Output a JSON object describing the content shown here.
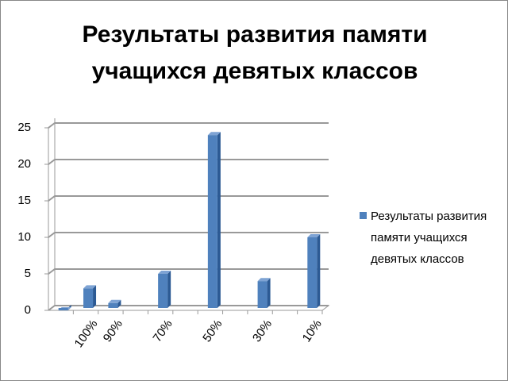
{
  "chart_data": {
    "type": "bar",
    "title": "Результаты развития памяти учащихся девятых классов",
    "categories": [
      null,
      "100%",
      "90%",
      null,
      "70%",
      null,
      "50%",
      null,
      "30%",
      null,
      "10%"
    ],
    "series": [
      {
        "name": "Результаты развития памяти учащихся девятых классов",
        "color": "#4f81bd",
        "values": [
          0,
          3,
          1,
          null,
          5,
          null,
          24,
          null,
          4,
          null,
          10
        ]
      }
    ],
    "ylim": [
      0,
      25
    ],
    "yticks": [
      0,
      5,
      10,
      15,
      20,
      25
    ],
    "grid": true,
    "legend": "right"
  }
}
